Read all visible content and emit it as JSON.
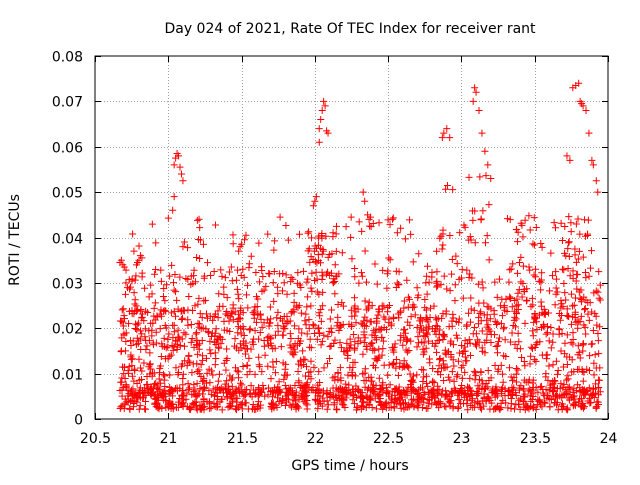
{
  "chart_data": {
    "type": "scatter",
    "title": "Day 024 of 2021, Rate Of TEC Index for receiver rant",
    "xlabel": "GPS time / hours",
    "ylabel": "ROTI / TECUs",
    "xlim": [
      20.5,
      24
    ],
    "ylim": [
      0,
      0.08
    ],
    "xticks": [
      20.5,
      21,
      21.5,
      22,
      22.5,
      23,
      23.5,
      24
    ],
    "xtick_labels": [
      "20.5",
      "21",
      "21.5",
      "22",
      "22.5",
      "23",
      "23.5",
      "24"
    ],
    "yticks": [
      0,
      0.01,
      0.02,
      0.03,
      0.04,
      0.05,
      0.06,
      0.07,
      0.08
    ],
    "ytick_labels": [
      "0",
      "0.01",
      "0.02",
      "0.03",
      "0.04",
      "0.05",
      "0.06",
      "0.07",
      "0.08"
    ],
    "grid": true,
    "marker": "plus",
    "color": "#ff0000",
    "series": [
      {
        "name": "ROTI",
        "points": [
          [
            20.67,
            0.0345
          ],
          [
            20.68,
            0.035
          ],
          [
            20.69,
            0.034
          ],
          [
            20.7,
            0.0335
          ],
          [
            20.8,
            0.035
          ],
          [
            20.81,
            0.036
          ],
          [
            20.82,
            0.0355
          ],
          [
            20.79,
            0.0345
          ],
          [
            21.03,
            0.046
          ],
          [
            21.04,
            0.049
          ],
          [
            21.04,
            0.056
          ],
          [
            21.05,
            0.0575
          ],
          [
            21.06,
            0.0585
          ],
          [
            21.07,
            0.058
          ],
          [
            21.08,
            0.0555
          ],
          [
            21.09,
            0.054
          ],
          [
            21.1,
            0.0525
          ],
          [
            21.1,
            0.038
          ],
          [
            21.11,
            0.039
          ],
          [
            21.48,
            0.037
          ],
          [
            21.49,
            0.038
          ],
          [
            21.5,
            0.0385
          ],
          [
            21.52,
            0.0395
          ],
          [
            21.53,
            0.0405
          ],
          [
            21.99,
            0.047
          ],
          [
            22.0,
            0.048
          ],
          [
            22.01,
            0.049
          ],
          [
            22.03,
            0.061
          ],
          [
            22.03,
            0.064
          ],
          [
            22.04,
            0.066
          ],
          [
            22.05,
            0.068
          ],
          [
            22.06,
            0.07
          ],
          [
            22.07,
            0.069
          ],
          [
            22.08,
            0.0635
          ],
          [
            22.09,
            0.063
          ],
          [
            22.33,
            0.05
          ],
          [
            22.34,
            0.048
          ],
          [
            22.36,
            0.045
          ],
          [
            22.37,
            0.044
          ],
          [
            22.38,
            0.0445
          ],
          [
            22.87,
            0.062
          ],
          [
            22.88,
            0.063
          ],
          [
            22.9,
            0.064
          ],
          [
            22.92,
            0.062
          ],
          [
            23.08,
            0.07
          ],
          [
            23.09,
            0.073
          ],
          [
            23.1,
            0.072
          ],
          [
            23.12,
            0.068
          ],
          [
            23.14,
            0.063
          ],
          [
            23.16,
            0.059
          ],
          [
            23.18,
            0.056
          ],
          [
            23.2,
            0.053
          ],
          [
            23.72,
            0.058
          ],
          [
            23.74,
            0.057
          ],
          [
            23.76,
            0.073
          ],
          [
            23.78,
            0.0735
          ],
          [
            23.8,
            0.074
          ],
          [
            23.81,
            0.07
          ],
          [
            23.82,
            0.0695
          ],
          [
            23.83,
            0.069
          ],
          [
            23.85,
            0.068
          ],
          [
            23.87,
            0.063
          ],
          [
            23.89,
            0.057
          ],
          [
            23.9,
            0.056
          ],
          [
            23.92,
            0.0525
          ],
          [
            23.93,
            0.05
          ]
        ]
      }
    ]
  }
}
